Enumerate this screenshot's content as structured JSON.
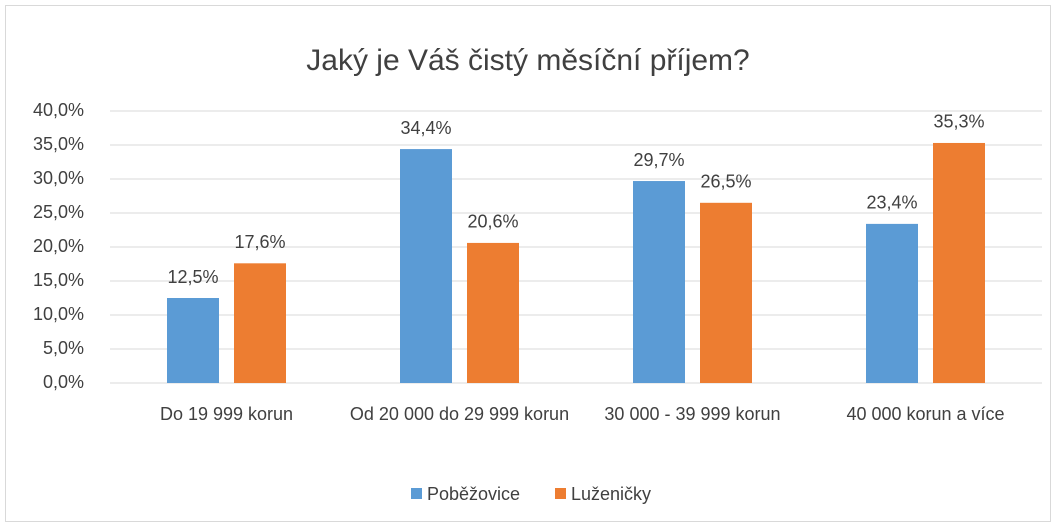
{
  "chart_data": {
    "type": "bar",
    "title": "Jaký je Váš čistý měsíční příjem?",
    "categories": [
      "Do 19 999 korun",
      "Od 20 000 do 29 999 korun",
      "30 000 - 39 999 korun",
      "40 000 korun a více"
    ],
    "series": [
      {
        "name": "Poběžovice",
        "color": "#5b9bd5",
        "values": [
          12.5,
          34.4,
          29.7,
          23.4
        ],
        "value_labels": [
          "12,5%",
          "34,4%",
          "29,7%",
          "23,4%"
        ]
      },
      {
        "name": "Luženičky",
        "color": "#ed7d31",
        "values": [
          17.6,
          20.6,
          26.5,
          35.3
        ],
        "value_labels": [
          "17,6%",
          "20,6%",
          "26,5%",
          "35,3%"
        ]
      }
    ],
    "ylim": [
      0,
      40
    ],
    "yticks": [
      {
        "value": 0,
        "label": "0,0%"
      },
      {
        "value": 5,
        "label": "5,0%"
      },
      {
        "value": 10,
        "label": "10,0%"
      },
      {
        "value": 15,
        "label": "15,0%"
      },
      {
        "value": 20,
        "label": "20,0%"
      },
      {
        "value": 25,
        "label": "25,0%"
      },
      {
        "value": 30,
        "label": "30,0%"
      },
      {
        "value": 35,
        "label": "35,0%"
      },
      {
        "value": 40,
        "label": "40,0%"
      }
    ],
    "grid": true,
    "legend": "bottom"
  }
}
